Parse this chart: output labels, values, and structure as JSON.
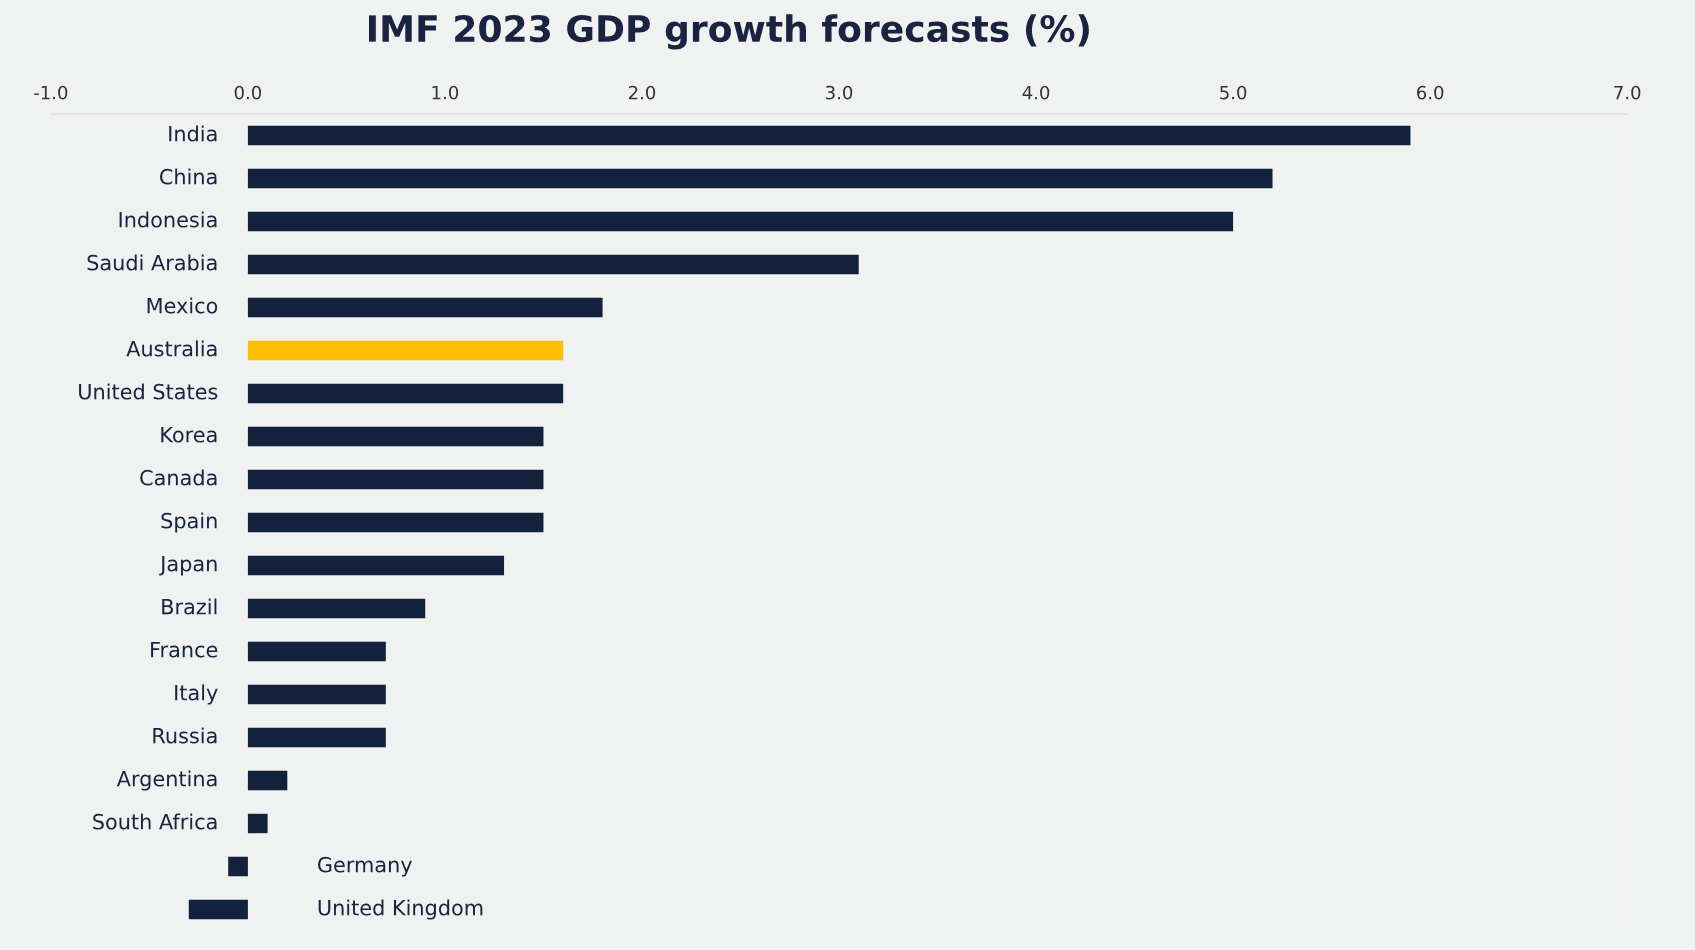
{
  "chart_data": {
    "type": "bar",
    "orientation": "horizontal",
    "title": "IMF 2023 GDP growth forecasts (%)",
    "categories": [
      "India",
      "China",
      "Indonesia",
      "Saudi Arabia",
      "Mexico",
      "Australia",
      "United States",
      "Korea",
      "Canada",
      "Spain",
      "Japan",
      "Brazil",
      "France",
      "Italy",
      "Russia",
      "Argentina",
      "South Africa",
      "Germany",
      "United Kingdom"
    ],
    "values": [
      5.9,
      5.2,
      5.0,
      3.1,
      1.8,
      1.6,
      1.6,
      1.5,
      1.5,
      1.5,
      1.3,
      0.9,
      0.7,
      0.7,
      0.7,
      0.2,
      0.1,
      -0.1,
      -0.3
    ],
    "colors": [
      "#14213d",
      "#14213d",
      "#14213d",
      "#14213d",
      "#14213d",
      "#fcc000",
      "#14213d",
      "#14213d",
      "#14213d",
      "#14213d",
      "#14213d",
      "#14213d",
      "#14213d",
      "#14213d",
      "#14213d",
      "#14213d",
      "#14213d",
      "#14213d",
      "#14213d"
    ],
    "xlim": [
      -1.0,
      7.0
    ],
    "xticks": [
      {
        "value": -1.0,
        "label": "-1.0"
      },
      {
        "value": 0,
        "label": "0.0"
      },
      {
        "value": 1,
        "label": "1.0"
      },
      {
        "value": 2,
        "label": "2.0"
      },
      {
        "value": 3,
        "label": "3.0"
      },
      {
        "value": 4,
        "label": "4.0"
      },
      {
        "value": 5,
        "label": "5.0"
      },
      {
        "value": 6,
        "label": "6.0"
      },
      {
        "value": 7,
        "label": "7.0"
      }
    ],
    "grid": false,
    "legend": false
  }
}
